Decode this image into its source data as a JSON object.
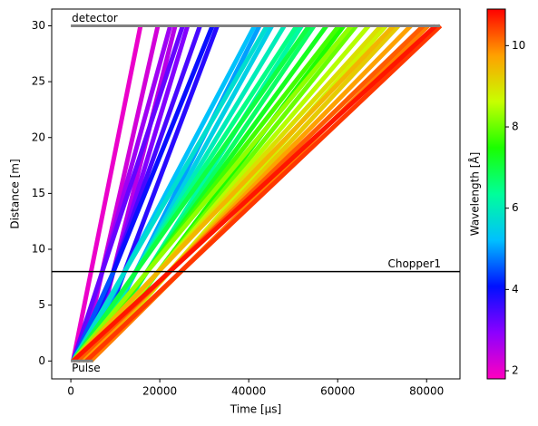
{
  "chart_data": {
    "type": "time_distance",
    "xlabel": "Time [µs]",
    "ylabel": "Distance [m]",
    "xlim": [
      -4300,
      87500
    ],
    "ylim": [
      -1.6,
      31.5
    ],
    "xticks": [
      0,
      20000,
      40000,
      60000,
      80000
    ],
    "yticks": [
      0,
      5,
      10,
      15,
      20,
      25,
      30
    ],
    "detector": {
      "label": "detector",
      "color": "#808080",
      "x": [
        0,
        83000
      ],
      "distance": 30
    },
    "pulse": {
      "label": "Pulse",
      "color": "#808080",
      "x": [
        0,
        5000
      ],
      "distance": 0
    },
    "chopper": {
      "label": "Chopper1",
      "color": "#000000",
      "distance": 8
    },
    "colorbar": {
      "label": "Wavelength [Å]",
      "lim": [
        1.8,
        10.9
      ],
      "ticks": [
        2,
        4,
        6,
        8,
        10
      ],
      "colormap": [
        "#ff00bf",
        "#8c00ff",
        "#0010ff",
        "#00c0ff",
        "#00ff9a",
        "#1aff00",
        "#c8ff00",
        "#ffa000",
        "#ff0000"
      ]
    },
    "rays": [
      {
        "wavelength": 2.0,
        "x": [
          500,
          15666
        ],
        "y": [
          0,
          30
        ]
      },
      {
        "wavelength": 2.25,
        "x": [
          2500,
          19562
        ],
        "y": [
          0,
          30
        ]
      },
      {
        "wavelength": 2.5,
        "x": [
          4500,
          23458
        ],
        "y": [
          0,
          30
        ]
      },
      {
        "wavelength": 2.75,
        "x": [
          1500,
          22353
        ],
        "y": [
          0,
          30
        ]
      },
      {
        "wavelength": 3.0,
        "x": [
          3500,
          26249
        ],
        "y": [
          0,
          30
        ]
      },
      {
        "wavelength": 3.25,
        "x": [
          500,
          25145
        ],
        "y": [
          0,
          30
        ]
      },
      {
        "wavelength": 3.5,
        "x": [
          2500,
          29041
        ],
        "y": [
          0,
          30
        ]
      },
      {
        "wavelength": 3.75,
        "x": [
          4500,
          32936
        ],
        "y": [
          0,
          30
        ]
      },
      {
        "wavelength": 4.0,
        "x": [
          1500,
          31832
        ],
        "y": [
          0,
          30
        ]
      },
      {
        "wavelength": 4.25,
        "x": [
          3500,
          12094
        ],
        "y": [
          0,
          8
        ]
      },
      {
        "wavelength": 4.5,
        "x": [
          500,
          9599
        ],
        "y": [
          0,
          8
        ]
      },
      {
        "wavelength": 4.75,
        "x": [
          2500,
          12105
        ],
        "y": [
          0,
          8
        ]
      },
      {
        "wavelength": 5.0,
        "x": [
          4500,
          42415
        ],
        "y": [
          0,
          30
        ]
      },
      {
        "wavelength": 5.25,
        "x": [
          1500,
          41311
        ],
        "y": [
          0,
          30
        ]
      },
      {
        "wavelength": 5.5,
        "x": [
          3500,
          45207
        ],
        "y": [
          0,
          30
        ]
      },
      {
        "wavelength": 5.75,
        "x": [
          500,
          44102
        ],
        "y": [
          0,
          30
        ]
      },
      {
        "wavelength": 6.0,
        "x": [
          2500,
          47998
        ],
        "y": [
          0,
          30
        ]
      },
      {
        "wavelength": 6.25,
        "x": [
          4500,
          51894
        ],
        "y": [
          0,
          30
        ]
      },
      {
        "wavelength": 6.5,
        "x": [
          1500,
          50790
        ],
        "y": [
          0,
          30
        ]
      },
      {
        "wavelength": 6.75,
        "x": [
          3500,
          54685
        ],
        "y": [
          0,
          30
        ]
      },
      {
        "wavelength": 7.0,
        "x": [
          500,
          53581
        ],
        "y": [
          0,
          30
        ]
      },
      {
        "wavelength": 7.25,
        "x": [
          2500,
          57477
        ],
        "y": [
          0,
          30
        ]
      },
      {
        "wavelength": 7.5,
        "x": [
          4500,
          61373
        ],
        "y": [
          0,
          30
        ]
      },
      {
        "wavelength": 7.75,
        "x": [
          1500,
          60268
        ],
        "y": [
          0,
          30
        ]
      },
      {
        "wavelength": 8.0,
        "x": [
          3500,
          64164
        ],
        "y": [
          0,
          30
        ]
      },
      {
        "wavelength": 8.25,
        "x": [
          500,
          63060
        ],
        "y": [
          0,
          30
        ]
      },
      {
        "wavelength": 8.5,
        "x": [
          2500,
          66956
        ],
        "y": [
          0,
          30
        ]
      },
      {
        "wavelength": 8.75,
        "x": [
          4500,
          70851
        ],
        "y": [
          0,
          30
        ]
      },
      {
        "wavelength": 9.0,
        "x": [
          1500,
          69747
        ],
        "y": [
          0,
          30
        ]
      },
      {
        "wavelength": 9.25,
        "x": [
          3500,
          73643
        ],
        "y": [
          0,
          30
        ]
      },
      {
        "wavelength": 9.5,
        "x": [
          500,
          72539
        ],
        "y": [
          0,
          30
        ]
      },
      {
        "wavelength": 9.75,
        "x": [
          2500,
          76434
        ],
        "y": [
          0,
          30
        ]
      },
      {
        "wavelength": 10.0,
        "x": [
          4500,
          80330
        ],
        "y": [
          0,
          30
        ]
      },
      {
        "wavelength": 10.25,
        "x": [
          1500,
          79226
        ],
        "y": [
          0,
          30
        ]
      },
      {
        "wavelength": 10.5,
        "x": [
          3500,
          83122
        ],
        "y": [
          0,
          30
        ]
      },
      {
        "wavelength": 10.75,
        "x": [
          500,
          82017
        ],
        "y": [
          0,
          30
        ]
      }
    ]
  }
}
